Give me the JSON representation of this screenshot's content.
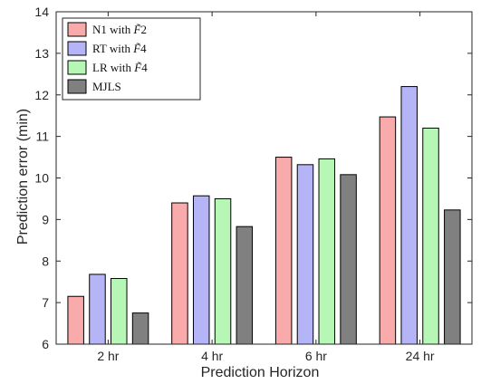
{
  "chart_data": {
    "type": "bar",
    "xlabel": "Prediction Horizon",
    "ylabel": "Prediction error (min)",
    "ylim": [
      6,
      14
    ],
    "yticks": [
      6,
      7,
      8,
      9,
      10,
      11,
      12,
      13,
      14
    ],
    "grid": false,
    "legend_position": "top-left",
    "categories": [
      "2 hr",
      "4 hr",
      "6 hr",
      "24 hr"
    ],
    "series": [
      {
        "name": "N1 with F̃2",
        "legend_prefix": "N1 with ",
        "legend_var": "F̃",
        "legend_suffix": "2",
        "color": "#f9aaaa",
        "values": [
          7.15,
          9.4,
          10.5,
          11.47
        ]
      },
      {
        "name": "RT with F̃4",
        "legend_prefix": "RT with ",
        "legend_var": "F̃",
        "legend_suffix": "4",
        "color": "#b4b4f6",
        "values": [
          7.68,
          9.57,
          10.32,
          12.2
        ]
      },
      {
        "name": "LR with F̃4",
        "legend_prefix": "LR with ",
        "legend_var": "F̃",
        "legend_suffix": "4",
        "color": "#b6f7b6",
        "values": [
          7.58,
          9.5,
          10.46,
          11.2
        ]
      },
      {
        "name": "MJLS",
        "legend_prefix": "MJLS",
        "legend_var": "",
        "legend_suffix": "",
        "color": "#808080",
        "values": [
          6.75,
          8.83,
          10.08,
          9.23
        ]
      }
    ]
  }
}
